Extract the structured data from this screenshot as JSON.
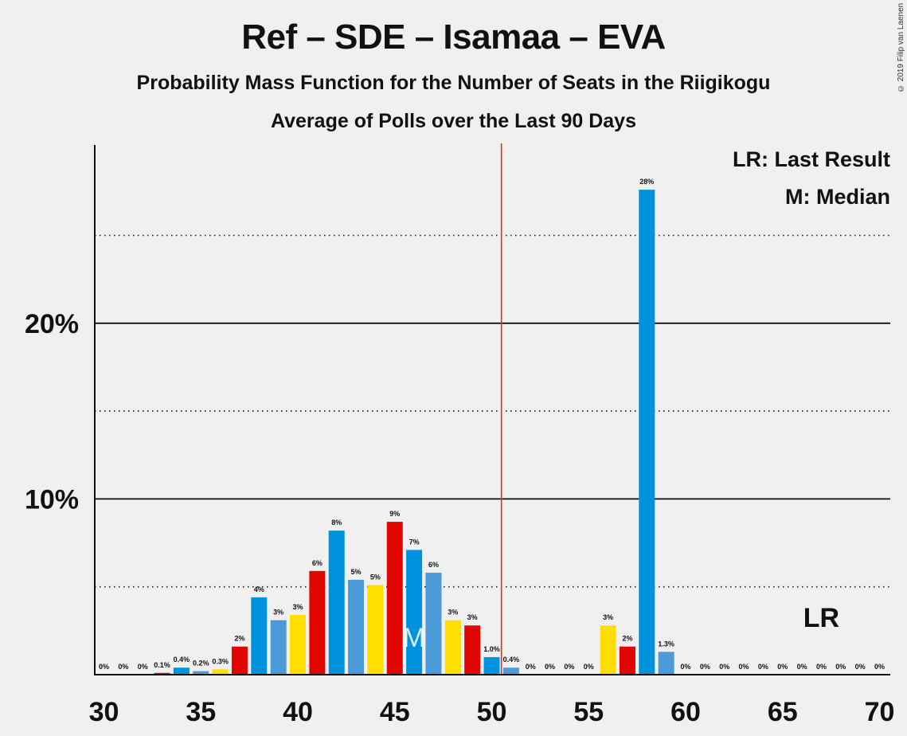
{
  "header": {
    "title": "Ref – SDE – Isamaa – EVA",
    "subtitle": "Probability Mass Function for the Number of Seats in the Riigikogu",
    "subtitle2": "Average of Polls over the Last 90 Days",
    "copyright": "© 2019 Filip van Laenen"
  },
  "legend": {
    "lr": "LR: Last Result",
    "m": "M: Median"
  },
  "colors": {
    "Ref": "#ffde00",
    "SDE": "#e10600",
    "Isamaa": "#0093dd",
    "EVA": "#4d9ad9",
    "majority_line": "#c8400a",
    "background": "#f0f0f0"
  },
  "chart_data": {
    "type": "bar",
    "title": "Ref – SDE – Isamaa – EVA",
    "subtitle": "Probability Mass Function for the Number of Seats in the Riigikogu",
    "x": [
      30,
      31,
      32,
      33,
      34,
      35,
      36,
      37,
      38,
      39,
      40,
      41,
      42,
      43,
      44,
      45,
      46,
      47,
      48,
      49,
      50,
      51,
      52,
      53,
      54,
      55,
      56,
      57,
      58,
      59,
      60,
      61,
      62,
      63,
      64,
      65,
      66,
      67,
      68,
      69,
      70
    ],
    "values": [
      0,
      0,
      0,
      0.1,
      0.4,
      0.2,
      0.3,
      1.6,
      4.4,
      3.1,
      3.4,
      5.9,
      8.2,
      5.4,
      5.1,
      8.7,
      7.1,
      5.8,
      3.1,
      2.8,
      1.0,
      0.4,
      0,
      0,
      0,
      0,
      2.8,
      1.6,
      27.6,
      1.3,
      0,
      0,
      0,
      0,
      0,
      0,
      0,
      0,
      0,
      0,
      0
    ],
    "labels": [
      "0%",
      "0%",
      "0%",
      "0.1%",
      "0.4%",
      "0.2%",
      "0.3%",
      "2%",
      "4%",
      "3%",
      "3%",
      "6%",
      "8%",
      "5%",
      "5%",
      "9%",
      "7%",
      "6%",
      "3%",
      "3%",
      "1.0%",
      "0.4%",
      "0%",
      "0%",
      "0%",
      "0%",
      "3%",
      "2%",
      "28%",
      "1.3%",
      "0%",
      "0%",
      "0%",
      "0%",
      "0%",
      "0%",
      "0%",
      "0%",
      "0%",
      "0%",
      "0%"
    ],
    "bar_parties": [
      "Isamaa",
      "EVA",
      "Ref",
      "SDE",
      "Isamaa",
      "EVA",
      "Ref",
      "SDE",
      "Isamaa",
      "EVA",
      "Ref",
      "SDE",
      "Isamaa",
      "EVA",
      "Ref",
      "SDE",
      "Isamaa",
      "EVA",
      "Ref",
      "SDE",
      "Isamaa",
      "EVA",
      "Ref",
      "SDE",
      "Isamaa",
      "EVA",
      "Ref",
      "SDE",
      "Isamaa",
      "EVA",
      "Ref",
      "SDE",
      "Isamaa",
      "EVA",
      "Ref",
      "SDE",
      "Isamaa",
      "EVA",
      "Ref",
      "SDE",
      "Isamaa"
    ],
    "x_ticks": [
      30,
      35,
      40,
      45,
      50,
      55,
      60,
      65,
      70
    ],
    "y_ticks_labeled": [
      {
        "value": 10,
        "label": "10%"
      },
      {
        "value": 20,
        "label": "20%"
      }
    ],
    "y_gridlines_solid": [
      10,
      20
    ],
    "y_gridlines_dotted": [
      5,
      15,
      25
    ],
    "ylim": [
      0,
      30
    ],
    "xlim": [
      29.5,
      70.5
    ],
    "majority_seat": 51,
    "median_seat": 46,
    "median_marker": "M",
    "last_result_seat": 67,
    "last_result_marker": "LR"
  }
}
